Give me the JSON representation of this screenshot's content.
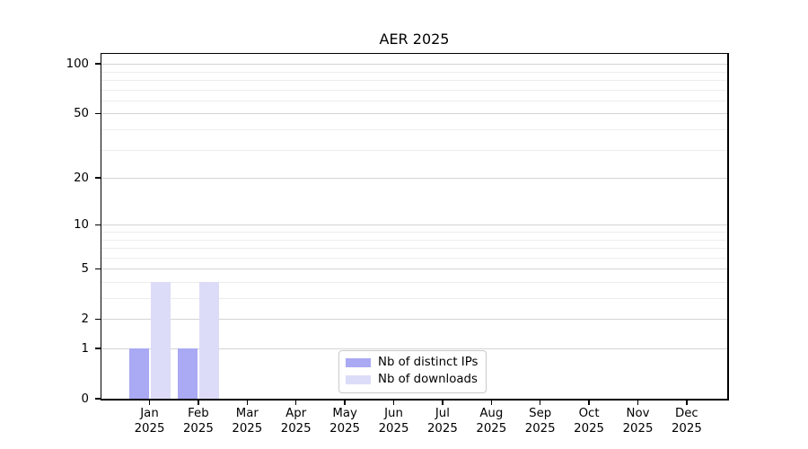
{
  "chart_data": {
    "type": "bar",
    "title": "AER 2025",
    "categories": [
      "Jan 2025",
      "Feb 2025",
      "Mar 2025",
      "Apr 2025",
      "May 2025",
      "Jun 2025",
      "Jul 2025",
      "Aug 2025",
      "Sep 2025",
      "Oct 2025",
      "Nov 2025",
      "Dec 2025"
    ],
    "x_tick_labels": [
      {
        "month": "Jan",
        "year": "2025"
      },
      {
        "month": "Feb",
        "year": "2025"
      },
      {
        "month": "Mar",
        "year": "2025"
      },
      {
        "month": "Apr",
        "year": "2025"
      },
      {
        "month": "May",
        "year": "2025"
      },
      {
        "month": "Jun",
        "year": "2025"
      },
      {
        "month": "Jul",
        "year": "2025"
      },
      {
        "month": "Aug",
        "year": "2025"
      },
      {
        "month": "Sep",
        "year": "2025"
      },
      {
        "month": "Oct",
        "year": "2025"
      },
      {
        "month": "Nov",
        "year": "2025"
      },
      {
        "month": "Dec",
        "year": "2025"
      }
    ],
    "series": [
      {
        "name": "Nb of distinct IPs",
        "color": "#a9a9f4",
        "values": [
          1,
          1,
          0,
          0,
          0,
          0,
          0,
          0,
          0,
          0,
          0,
          0
        ]
      },
      {
        "name": "Nb of downloads",
        "color": "#dcdcf9",
        "values": [
          4,
          4,
          0,
          0,
          0,
          0,
          0,
          0,
          0,
          0,
          0,
          0
        ]
      }
    ],
    "yscale": "log1p",
    "ylim": [
      0,
      115
    ],
    "y_major_ticks": [
      100,
      50,
      20,
      10,
      5,
      2,
      1,
      0
    ],
    "y_minor_gridlines": [
      90,
      80,
      70,
      60,
      40,
      30,
      9,
      8,
      7,
      6,
      4,
      3
    ],
    "grid": true,
    "legend_position": "lower center",
    "xlabel": "",
    "ylabel": ""
  },
  "style": {
    "background": "#ffffff",
    "axis_color": "#000000",
    "grid_major_color": "#d4d4d4",
    "grid_minor_color": "#ededed",
    "ips_bar_color": "#a9a9f4",
    "downloads_bar_color": "#dcdcf9",
    "legend_border_color": "#c9c9c9"
  }
}
